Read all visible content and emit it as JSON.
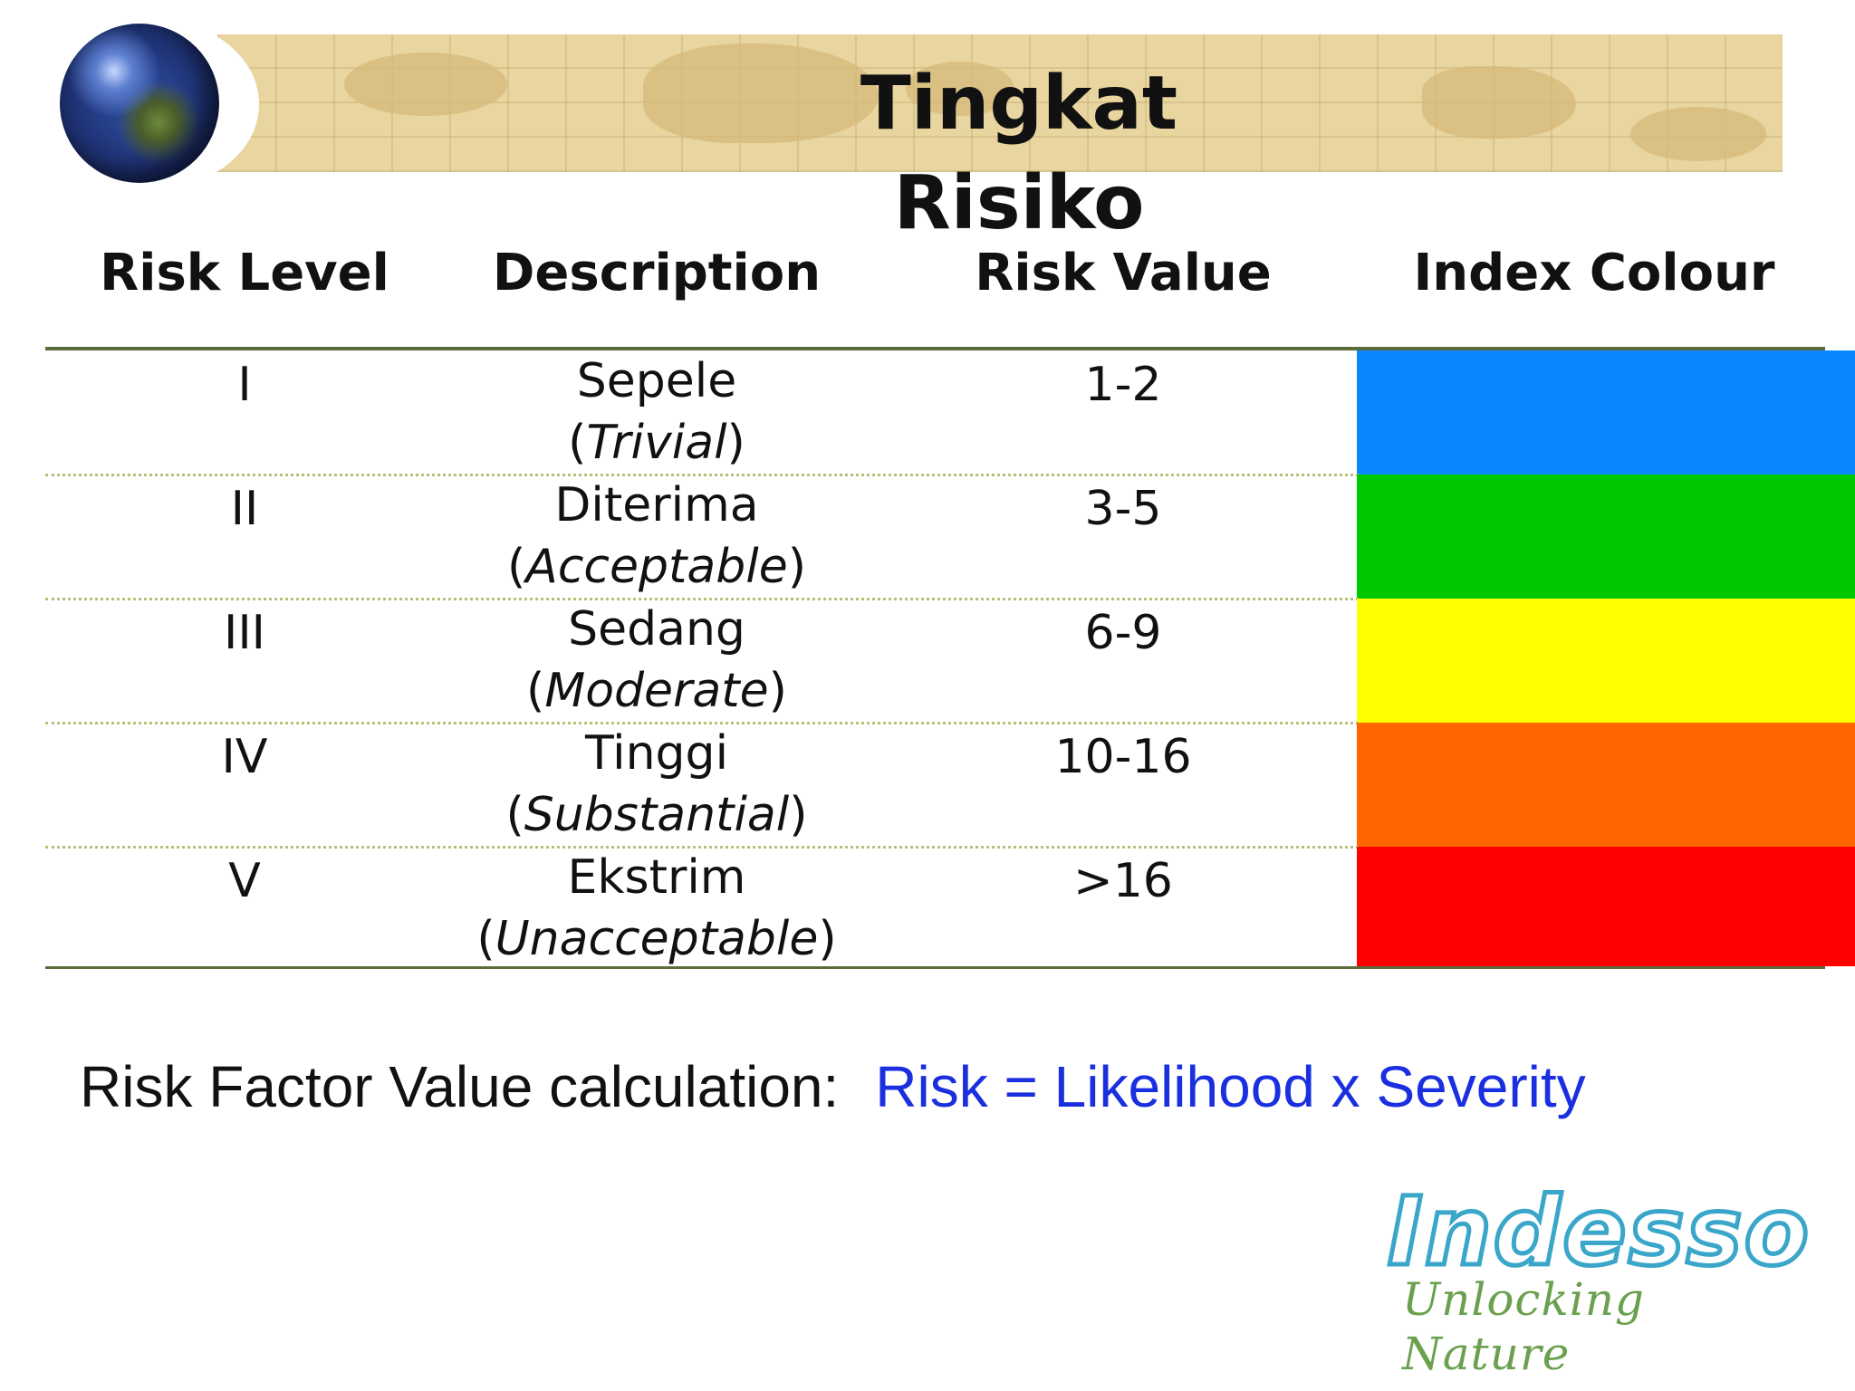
{
  "header": {
    "title": "Tingkat Risiko"
  },
  "table": {
    "columns": [
      "Risk Level",
      "Description",
      "Risk Value",
      "Index Colour"
    ],
    "rows": [
      {
        "level": "I",
        "desc_id": "Sepele",
        "desc_en": "Trivial",
        "value": "1-2",
        "colour": "#0a87ff"
      },
      {
        "level": "II",
        "desc_id": "Diterima",
        "desc_en": "Acceptable",
        "value": "3-5",
        "colour": "#00c800"
      },
      {
        "level": "III",
        "desc_id": "Sedang",
        "desc_en": "Moderate",
        "value": "6-9",
        "colour": "#ffff00"
      },
      {
        "level": "IV",
        "desc_id": "Tinggi",
        "desc_en": "Substantial",
        "value": "10-16",
        "colour": "#ff6600"
      },
      {
        "level": "V",
        "desc_id": "Ekstrim",
        "desc_en": "Unacceptable",
        "value": ">16",
        "colour": "#ff0000"
      }
    ]
  },
  "footer": {
    "formula_label": "Risk Factor Value calculation:",
    "formula_expr": "Risk = Likelihood x Severity"
  },
  "logo": {
    "name": "Indesso",
    "tagline": "Unlocking Nature"
  }
}
